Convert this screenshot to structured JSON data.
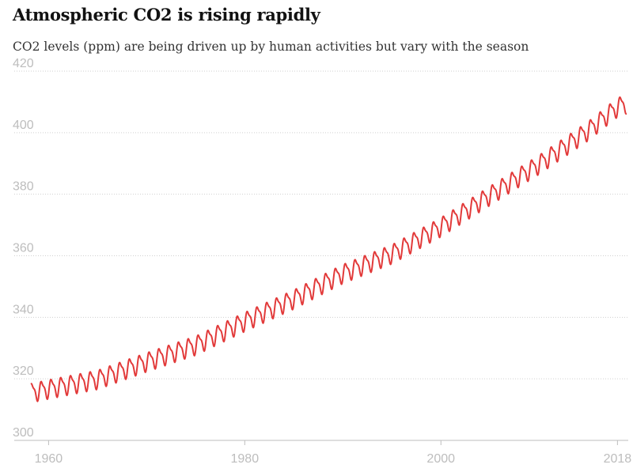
{
  "chart_data": {
    "type": "line",
    "title": "Atmospheric CO2 is rising rapidly",
    "subtitle": "CO2 levels (ppm) are being driven up by human activities but vary with the season",
    "xlabel": "",
    "ylabel": "",
    "xlim": [
      1956.5,
      2019.1
    ],
    "ylim": [
      300,
      420
    ],
    "y_ticks": [
      "300",
      "320",
      "340",
      "360",
      "380",
      "400",
      "420"
    ],
    "x_ticks": [
      {
        "value": 1960,
        "label": "1960"
      },
      {
        "value": 1980,
        "label": "1980"
      },
      {
        "value": 2000,
        "label": "2000"
      },
      {
        "value": 2018,
        "label": "2018"
      }
    ],
    "grid": true,
    "legend": "none",
    "colors": {
      "series": "#e23a3a"
    },
    "series": [
      {
        "seasonal_amplitude_ppm": 3.3,
        "annual_points": [
          {
            "x": 1958.25,
            "y": 315.7
          },
          {
            "x": 1960,
            "y": 316.9
          },
          {
            "x": 1965,
            "y": 320.0
          },
          {
            "x": 1970,
            "y": 325.7
          },
          {
            "x": 1975,
            "y": 331.1
          },
          {
            "x": 1980,
            "y": 338.8
          },
          {
            "x": 1985,
            "y": 346.1
          },
          {
            "x": 1990,
            "y": 354.4
          },
          {
            "x": 1995,
            "y": 360.8
          },
          {
            "x": 2000,
            "y": 369.6
          },
          {
            "x": 2005,
            "y": 379.8
          },
          {
            "x": 2010,
            "y": 389.9
          },
          {
            "x": 2015,
            "y": 400.8
          },
          {
            "x": 2018,
            "y": 408.5
          },
          {
            "x": 2018.9,
            "y": 409.6
          }
        ]
      }
    ]
  }
}
